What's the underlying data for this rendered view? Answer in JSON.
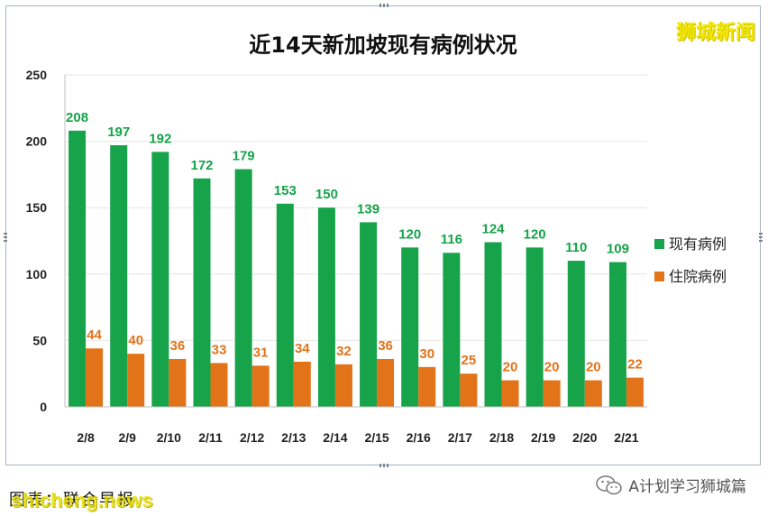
{
  "watermark": "狮城新闻",
  "source_label": "图表：联合早报",
  "source_watermark": "shicheng.news",
  "account_name": "A计划学习狮城篇",
  "colors": {
    "current": "#16a34a",
    "hospital": "#e37318",
    "grid": "#e6e6e6"
  },
  "chart_data": {
    "type": "bar",
    "title": "近14天新加坡现有病例状况",
    "categories": [
      "2/8",
      "2/9",
      "2/10",
      "2/11",
      "2/12",
      "2/13",
      "2/14",
      "2/15",
      "2/16",
      "2/17",
      "2/18",
      "2/19",
      "2/20",
      "2/21"
    ],
    "series": [
      {
        "name": "现有病例",
        "values": [
          208,
          197,
          192,
          172,
          179,
          153,
          150,
          139,
          120,
          116,
          124,
          120,
          110,
          109
        ]
      },
      {
        "name": "住院病例",
        "values": [
          44,
          40,
          36,
          33,
          31,
          34,
          32,
          36,
          30,
          25,
          20,
          20,
          20,
          22
        ]
      }
    ],
    "yticks": [
      0,
      50,
      100,
      150,
      200,
      250
    ],
    "ylim": [
      0,
      250
    ],
    "grid": true,
    "legend_position": "right"
  }
}
